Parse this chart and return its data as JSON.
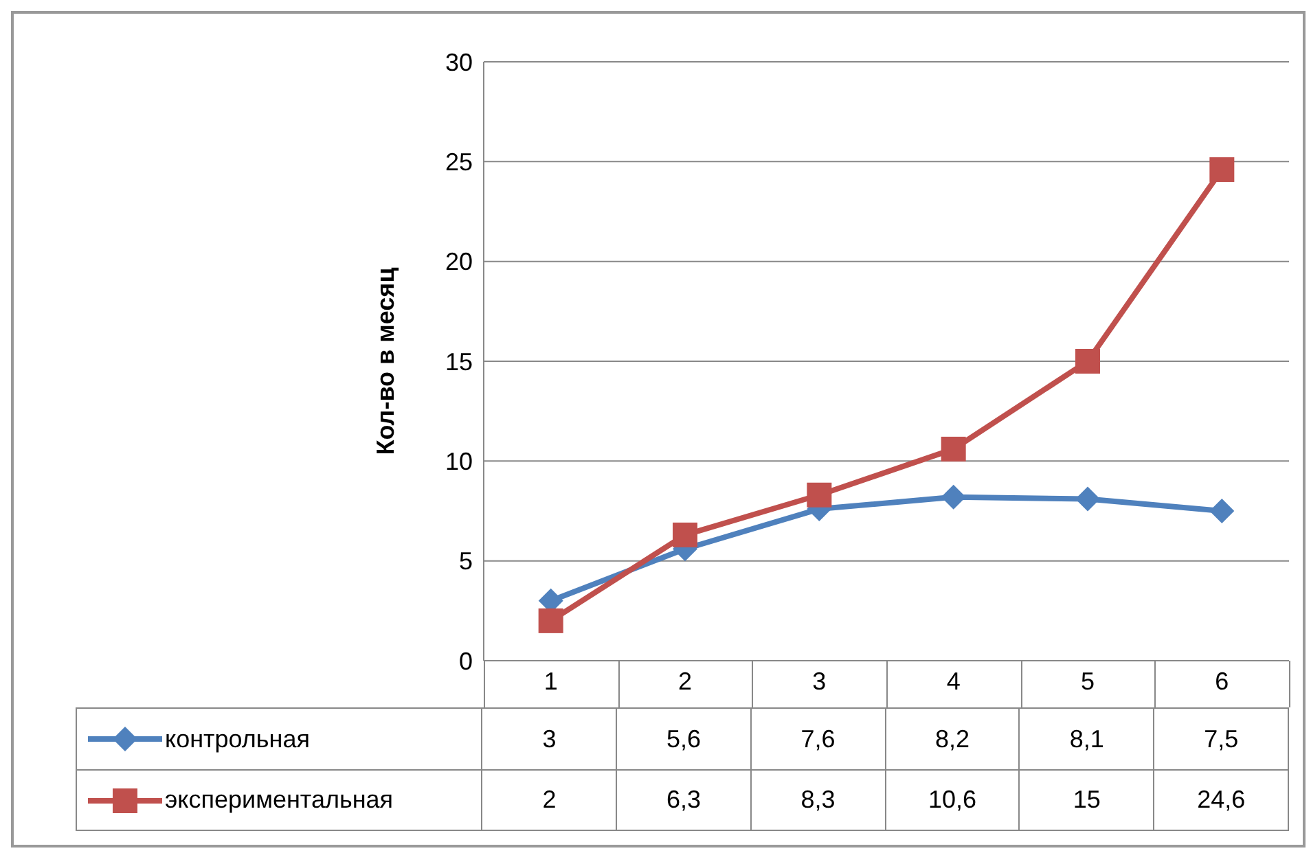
{
  "chart_data": {
    "type": "line",
    "ylabel": "Кол-во в месяц",
    "categories": [
      "1",
      "2",
      "3",
      "4",
      "5",
      "6"
    ],
    "series": [
      {
        "name": "контрольная",
        "color": "#4f81bd",
        "marker": "diamond",
        "values": [
          3,
          5.6,
          7.6,
          8.2,
          8.1,
          7.5
        ],
        "value_labels": [
          "3",
          "5,6",
          "7,6",
          "8,2",
          "8,1",
          "7,5"
        ]
      },
      {
        "name": "экспериментальная",
        "color": "#c0504d",
        "marker": "square",
        "values": [
          2,
          6.3,
          8.3,
          10.6,
          15,
          24.6
        ],
        "value_labels": [
          "2",
          "6,3",
          "8,3",
          "10,6",
          "15",
          "24,6"
        ]
      }
    ],
    "ylim": [
      0,
      30
    ],
    "yticks": [
      0,
      5,
      10,
      15,
      20,
      25,
      30
    ],
    "grid": "y",
    "legend": "bottom"
  }
}
